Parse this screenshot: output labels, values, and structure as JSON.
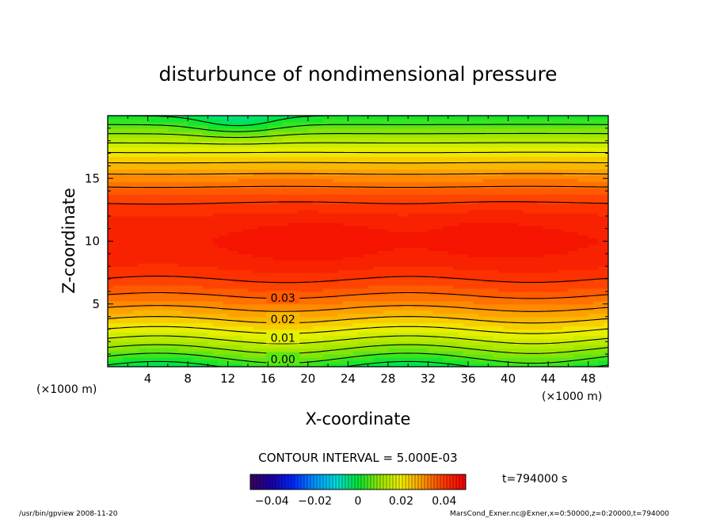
{
  "chart_data": {
    "type": "heatmap",
    "title": "disturbunce of nondimensional pressure",
    "xlabel": "X-coordinate",
    "ylabel": "Z-coordinate",
    "x_unit_left": "(×1000 m)",
    "x_unit_right": "(×1000 m)",
    "xlim": [
      0,
      50
    ],
    "ylim": [
      0,
      20
    ],
    "x_ticks": [
      "4",
      "8",
      "12",
      "16",
      "20",
      "24",
      "28",
      "32",
      "36",
      "40",
      "44",
      "48"
    ],
    "y_ticks": [
      "5",
      "10",
      "15"
    ],
    "contour_labels": [
      {
        "text": "0.00",
        "x": 17.5,
        "z": 0.6
      },
      {
        "text": "0.01",
        "x": 17.5,
        "z": 2.3
      },
      {
        "text": "0.02",
        "x": 17.5,
        "z": 3.8
      },
      {
        "text": "0.03",
        "x": 17.5,
        "z": 5.5
      }
    ],
    "contour_levels": [
      0.0,
      0.005,
      0.01,
      0.015,
      0.02,
      0.025,
      0.03,
      0.035,
      0.04
    ],
    "contour_interval_text": "CONTOUR INTERVAL = 5.000E-03",
    "colorbar": {
      "range": [
        -0.05,
        0.05
      ],
      "tick_labels": [
        "−0.04",
        "−0.02",
        "0",
        "0.02",
        "0.04"
      ],
      "tick_values": [
        -0.04,
        -0.02,
        0,
        0.02,
        0.04
      ]
    },
    "time_label": "t=794000 s",
    "grid": false
  },
  "footer": {
    "left": "/usr/bin/gpview   2008-11-20",
    "right": "MarsCond_Exner.nc@Exner,x=0:50000,z=0:20000,t=794000"
  }
}
